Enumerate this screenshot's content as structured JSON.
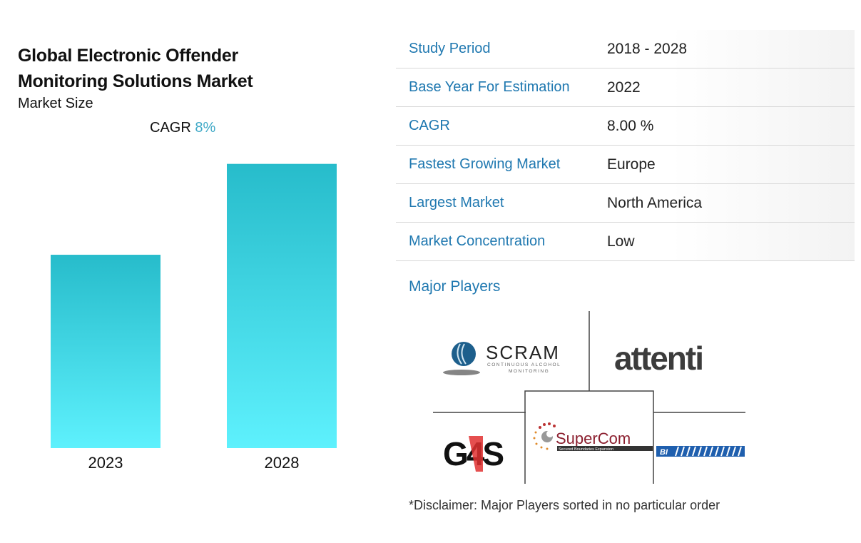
{
  "header": {
    "title": "Global Electronic Offender Monitoring Solutions Market",
    "subtitle": "Market Size",
    "cagr_label": "CAGR",
    "cagr_value": "8%"
  },
  "chart_data": {
    "type": "bar",
    "title": "Global Electronic Offender Monitoring Solutions Market",
    "categories": [
      "2023",
      "2028"
    ],
    "values": [
      1.0,
      1.47
    ],
    "value_units": "relative market size (not labeled)",
    "xlabel": "",
    "ylabel": "",
    "ylim": [
      0,
      1.55
    ],
    "colors": {
      "top": "#27bccb",
      "bottom": "#5ef1fd"
    }
  },
  "table": [
    {
      "label": "Study Period",
      "value": "2018 - 2028"
    },
    {
      "label": "Base Year For Estimation",
      "value": "2022"
    },
    {
      "label": "CAGR",
      "value": "8.00 %"
    },
    {
      "label": "Fastest Growing Market",
      "value": "Europe"
    },
    {
      "label": "Largest Market",
      "value": "North America"
    },
    {
      "label": "Market Concentration",
      "value": "Low"
    }
  ],
  "major_players": {
    "title": "Major Players",
    "logos": [
      {
        "name": "SCRAM",
        "tagline": "CONTINUOUS ALCOHOL MONITORING"
      },
      {
        "name": "attenti"
      },
      {
        "name": "G4S"
      },
      {
        "name": "SuperCom",
        "tagline": "Secured Boundaries Expansion"
      },
      {
        "name": "BI"
      }
    ]
  },
  "disclaimer": "*Disclaimer: Major Players sorted in no particular order"
}
